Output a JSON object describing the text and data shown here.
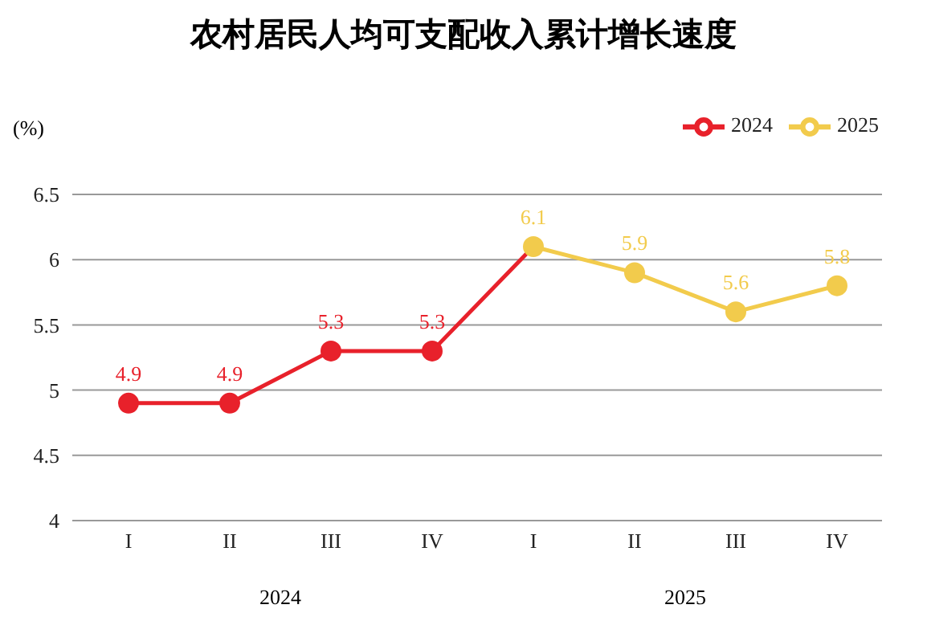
{
  "chart_data": {
    "type": "line",
    "title": "农村居民人均可支配收入累计增长速度",
    "ylabel": "(%)",
    "categories": [
      "I",
      "II",
      "III",
      "IV",
      "I",
      "II",
      "III",
      "IV"
    ],
    "annotations": [
      "2024",
      "2025"
    ],
    "series": [
      {
        "name": "2024",
        "color": "#e8212b",
        "values": [
          4.9,
          4.9,
          5.3,
          5.3,
          6.1,
          null,
          null,
          null
        ],
        "value_labels": [
          "4.9",
          "4.9",
          "5.3",
          "5.3",
          null,
          null,
          null,
          null
        ]
      },
      {
        "name": "2025",
        "color": "#f2cb4c",
        "values": [
          null,
          null,
          null,
          null,
          6.1,
          5.9,
          5.6,
          5.8
        ],
        "value_labels": [
          null,
          null,
          null,
          null,
          "6.1",
          "5.9",
          "5.6",
          "5.8"
        ]
      }
    ],
    "ylim": [
      4,
      6.5
    ],
    "yticks": [
      4,
      4.5,
      5,
      5.5,
      6,
      6.5
    ],
    "grid": "y",
    "legend": "top right",
    "marker": "circle"
  }
}
